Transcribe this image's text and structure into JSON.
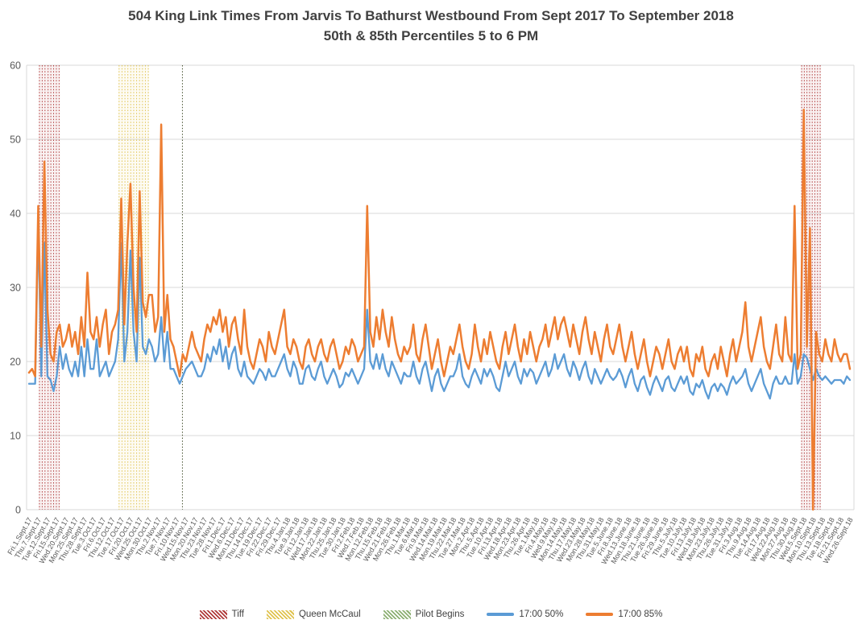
{
  "chart_data": {
    "type": "line",
    "title": "504 King Link Times From Jarvis To Bathurst Westbound From Sept 2017 To September 2018",
    "subtitle": "50th & 85th Percentiles 5 to 6 PM",
    "ylim": [
      0,
      60
    ],
    "y_ticks": [
      0,
      10,
      20,
      30,
      40,
      50,
      60
    ],
    "grid": true,
    "legend_position": "bottom",
    "points_per_x_label": 3,
    "x_tick_labels": [
      "Fri.1.Sept.17",
      "Thu.7.Sept.17",
      "Tue.12.Sept.17",
      "Fri.15.Sept.17",
      "Wed.20.Sept.17",
      "Mon.25.Sept.17",
      "Thu.28.Sept.17",
      "Tue.3.Oct.17",
      "Fri.6.Oct.17",
      "Thu.12.Oct.17",
      "Tue.17.Oct.17",
      "Fri.20.Oct.17",
      "Wed.25.Oct.17",
      "Mon.30.Oct.17",
      "Thu.2.Nov.17",
      "Tue.7.Nov.17",
      "Fri.10.Nov.17",
      "Wed.15.Nov.17",
      "Mon.20.Nov.17",
      "Thu.23.Nov.17",
      "Tue.28.Nov.17",
      "Fri.1.Dec.17",
      "Wed.6.Dec.17",
      "Mon.11.Dec.17",
      "Thu.14.Dec.17",
      "Tue.19.Dec.17",
      "Fri.22.Dec.17",
      "Fri.29.Dec.17",
      "Thu.4.Jan.18",
      "Tue.9.Jan.18",
      "Fri.12.Jan.18",
      "Wed.17.Jan.18",
      "Mon.22.Jan.18",
      "Thu.25.Jan.18",
      "Tue.30.Jan.18",
      "Fri.2.Feb.18",
      "Wed.7.Feb.18",
      "Mon.12.Feb.18",
      "Thu.15.Feb.18",
      "Wed.21.Feb.18",
      "Mon.26.Feb.18",
      "Thu.1.Mar.18",
      "Tue.6.Mar.18",
      "Fri.9.Mar.18",
      "Wed.14.Mar.18",
      "Mon.19.Mar.18",
      "Thu.22.Mar.18",
      "Tue.27.Mar.18",
      "Mon.2.Apr.18",
      "Thu.5.Apr.18",
      "Tue.10.Apr.18",
      "Fri.13.Apr.18",
      "Wed.18.Apr.18",
      "Mon.23.Apr.18",
      "Thu.26.Apr.18",
      "Tue.1.May.18",
      "Fri.4.May.18",
      "Wed.9.May.18",
      "Mon.14.May.18",
      "Thu.17.May.18",
      "Wed.23.May.18",
      "Mon.28.May.18",
      "Thu.31.May.18",
      "Tue.5.June.18",
      "Fri.8.June.18",
      "Wed.13.June.18",
      "Mon.18.June.18",
      "Thu.21.June.18",
      "Tue.26.June.18",
      "Fri.29.June.18",
      "Thu.5.July.18",
      "Tue.10.July.18",
      "Fri.13.July.18",
      "Wed.18.July.18",
      "Mon.23.July.18",
      "Thu.26.July.18",
      "Tue.31.July.18",
      "Fri.3.Aug.18",
      "Thu.9.Aug.18",
      "Tue.14.Aug.18",
      "Fri.17.Aug.18",
      "Wed.22.Aug.18",
      "Mon.27.Aug.18",
      "Thu.30.Aug.18",
      "Wed.5.Sept.18",
      "Mon.10.Sept.18",
      "Thu.13.Sept.18",
      "Tue.18.Sept.18",
      "Fri.21.Sept.18",
      "Wed.26.Sept.18"
    ],
    "series": [
      {
        "name": "17:00 50%",
        "color": "#5B9BD5",
        "values": [
          17,
          17,
          17,
          39,
          18,
          36,
          18,
          17.5,
          16,
          18,
          22,
          19,
          21,
          19,
          18,
          20,
          18,
          22,
          18,
          23,
          19,
          19,
          23,
          18,
          19,
          20,
          18,
          19,
          20,
          23,
          36,
          20,
          24,
          35,
          24,
          20,
          34,
          22,
          21,
          23,
          22,
          20,
          21,
          26,
          20,
          24,
          19,
          19,
          18,
          17,
          18,
          19,
          19.5,
          20,
          19,
          18,
          18,
          19,
          21,
          20,
          22,
          21,
          23,
          20,
          22,
          19,
          21,
          22,
          19,
          18,
          20,
          18,
          17.5,
          17,
          18,
          19,
          18.5,
          17.5,
          19,
          18,
          18,
          19,
          20,
          21,
          19,
          18,
          20,
          19,
          17,
          17,
          19,
          19.5,
          18,
          17.5,
          19,
          20,
          18,
          17,
          18,
          19,
          18,
          16.5,
          17,
          18.5,
          18,
          19,
          18,
          17,
          18,
          19,
          27,
          20,
          19,
          21,
          19,
          21,
          19,
          18,
          20,
          19,
          18,
          17,
          18.5,
          18,
          18,
          20,
          18,
          17,
          19,
          20,
          18,
          16,
          18,
          19,
          17,
          16,
          17,
          18,
          18,
          19,
          21,
          18,
          17,
          16.5,
          18,
          19,
          18,
          17,
          19,
          18,
          19,
          18,
          16.5,
          16,
          18,
          20,
          18,
          19,
          20,
          18,
          17,
          19,
          18,
          19,
          18.5,
          17,
          18,
          19,
          20,
          18,
          19,
          21,
          19,
          20,
          21,
          19,
          18,
          20,
          19,
          17.5,
          19,
          20,
          18,
          17,
          19,
          18,
          17,
          18,
          19,
          18,
          17.5,
          18,
          19,
          18,
          16.5,
          18,
          19,
          17,
          16,
          17.5,
          18,
          16.5,
          15.5,
          17,
          18,
          17,
          16,
          17.5,
          18,
          16.5,
          16,
          17,
          18,
          17,
          18,
          16,
          15.5,
          17,
          16.5,
          17.5,
          16,
          15,
          16.5,
          17,
          16,
          17,
          16.5,
          15.5,
          17,
          18,
          17,
          17.5,
          18,
          19,
          17,
          16,
          17,
          18,
          19,
          17,
          16,
          15,
          17,
          18,
          17,
          17,
          18,
          17,
          17,
          21,
          17,
          18,
          21,
          20.5,
          19,
          17.5,
          19,
          18,
          17.5,
          18,
          17.5,
          17,
          17.5,
          17.5,
          17.5,
          17,
          18,
          17.5
        ]
      },
      {
        "name": "17:00 85%",
        "color": "#ED7D31",
        "values": [
          18.5,
          19,
          18,
          41,
          22,
          47,
          27,
          21,
          20,
          24,
          25,
          22,
          23,
          25,
          22,
          24,
          21,
          26,
          22,
          32,
          24,
          23,
          26,
          22,
          25,
          27,
          21,
          24,
          25,
          27,
          42,
          25,
          36,
          44,
          30,
          24,
          43,
          28,
          26,
          29,
          29,
          24,
          26,
          52,
          24,
          29,
          23,
          22,
          20,
          18,
          21,
          20,
          22,
          24,
          22,
          21,
          20,
          23,
          25,
          24,
          26,
          25,
          27,
          24,
          26,
          22,
          25,
          26,
          23,
          21,
          27,
          22,
          20,
          19,
          21,
          23,
          22,
          20,
          24,
          22,
          21,
          23,
          25,
          27,
          22,
          21,
          23,
          22,
          20,
          19,
          22,
          23,
          21,
          20,
          22,
          23,
          21,
          20,
          22,
          23,
          21,
          19,
          20,
          22,
          21,
          23,
          22,
          20,
          21,
          22,
          41,
          24,
          22,
          26,
          23,
          27,
          24,
          22,
          26,
          23,
          21,
          20,
          22,
          21,
          22,
          25,
          21,
          20,
          23,
          25,
          22,
          19,
          21,
          23,
          20,
          18,
          20,
          22,
          21,
          23,
          25,
          22,
          20,
          19,
          21,
          25,
          22,
          20,
          23,
          21,
          24,
          22,
          20,
          19,
          22,
          24,
          21,
          23,
          25,
          22,
          20,
          23,
          21,
          24,
          22,
          20,
          22,
          23,
          25,
          22,
          24,
          26,
          23,
          25,
          26,
          24,
          22,
          25,
          23,
          21,
          24,
          26,
          23,
          21,
          24,
          22,
          20,
          23,
          25,
          22,
          21,
          23,
          25,
          22,
          20,
          22,
          24,
          21,
          19,
          21,
          23,
          20,
          18,
          20,
          22,
          21,
          19,
          21,
          23,
          20,
          19,
          21,
          22,
          20,
          22,
          19,
          18,
          21,
          20,
          22,
          19,
          18,
          20,
          21,
          19,
          22,
          20,
          18,
          21,
          23,
          20,
          22,
          24,
          28,
          22,
          20,
          22,
          24,
          26,
          22,
          20,
          19,
          22,
          25,
          21,
          20,
          26,
          21,
          20,
          41,
          19,
          21,
          54,
          22,
          38,
          0,
          24,
          21,
          20,
          23,
          21,
          20,
          23,
          21,
          20,
          21,
          21,
          19
        ]
      }
    ],
    "event_markers": [
      {
        "name": "Tiff",
        "style": "dotted-vertical",
        "color": "#B03A3A",
        "indices": [
          3.4,
          4.3,
          5.2,
          6.2,
          7.1,
          8.0,
          8.9,
          9.8
        ]
      },
      {
        "name": "Queen McCaul",
        "style": "dotted-vertical",
        "color": "#E0C34F",
        "indices": [
          29.3,
          30.25,
          31.2,
          32.15,
          33.1,
          34.05,
          35.0,
          35.95,
          36.9,
          37.85,
          38.8
        ]
      },
      {
        "name": "Pilot Begins",
        "style": "dotted-vertical",
        "color": "#44502F",
        "indices": [
          49.9
        ]
      },
      {
        "name": "Tiff",
        "style": "dotted-vertical",
        "color": "#B03A3A",
        "indices": [
          251.3,
          252.16,
          253.02,
          253.88,
          254.74,
          255.6,
          256.46,
          257.32
        ]
      }
    ]
  },
  "legend": {
    "items": [
      {
        "label": "Tiff",
        "swatch": "hatch",
        "color": "#B03A3A"
      },
      {
        "label": "Queen McCaul",
        "swatch": "hatch",
        "color": "#E0C34F"
      },
      {
        "label": "Pilot Begins",
        "swatch": "hatch",
        "color": "#8CAF72"
      },
      {
        "label": "17:00 50%",
        "swatch": "line",
        "color": "#5B9BD5"
      },
      {
        "label": "17:00 85%",
        "swatch": "line",
        "color": "#ED7D31"
      }
    ]
  },
  "colors": {
    "grid": "#D9D9D9",
    "axis_text": "#595959",
    "title_text": "#404040",
    "background": "#FFFFFF"
  }
}
